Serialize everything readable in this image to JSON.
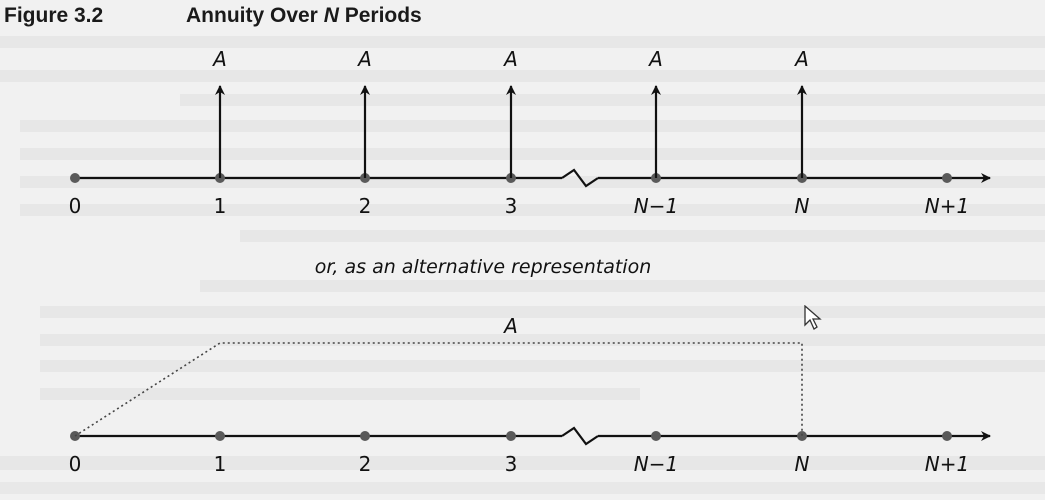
{
  "figure": {
    "number": "Figure 3.2",
    "title_prefix": "Annuity Over ",
    "title_var": "N",
    "title_suffix": " Periods"
  },
  "top_timeline": {
    "period_labels": [
      "0",
      "1",
      "2",
      "3",
      "N−1",
      "N",
      "N+1"
    ],
    "payment_label": "A",
    "payment_periods": [
      "1",
      "2",
      "3",
      "N−1",
      "N"
    ]
  },
  "separator_text": "or, as an alternative representation",
  "bottom_timeline": {
    "period_labels": [
      "0",
      "1",
      "2",
      "3",
      "N−1",
      "N",
      "N+1"
    ],
    "payment_label": "A",
    "bracket_from": "0",
    "bracket_to": "N"
  },
  "colors": {
    "line": "#111111",
    "dot": "#5a5a5a",
    "background": "#f1f1f1",
    "bleed_text": "#c9c9c9"
  },
  "icons": [
    "mouse-cursor-icon"
  ]
}
